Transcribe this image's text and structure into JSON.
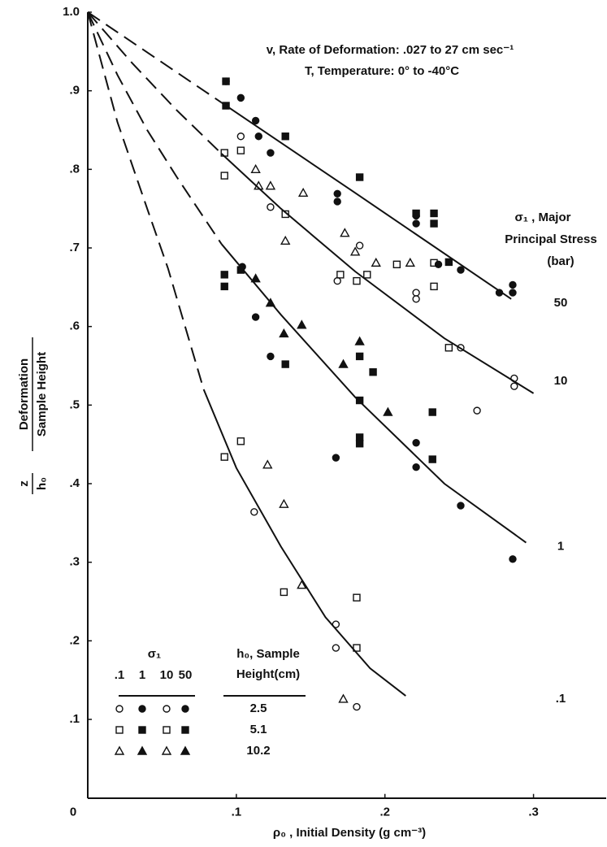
{
  "chart_data": {
    "type": "scatter",
    "xlim": [
      0,
      0.35
    ],
    "ylim": [
      0,
      1.0
    ],
    "xticks": [
      0,
      {
        "value": 0.1,
        "label": ".1"
      },
      {
        "value": 0.2,
        "label": ".2"
      },
      {
        "value": 0.3,
        "label": ".3"
      }
    ],
    "yticks": [
      {
        "value": 0.1,
        "label": ".1"
      },
      {
        "value": 0.2,
        "label": ".2"
      },
      {
        "value": 0.3,
        "label": ".3"
      },
      {
        "value": 0.4,
        "label": ".4"
      },
      {
        "value": 0.5,
        "label": ".5"
      },
      {
        "value": 0.6,
        "label": ".6"
      },
      {
        "value": 0.7,
        "label": ".7"
      },
      {
        "value": 0.8,
        "label": ".8"
      },
      {
        "value": 0.9,
        "label": ".9"
      },
      {
        "value": 1.0,
        "label": "1.0"
      }
    ],
    "x_label": "ρ₀ , Initial Density (g cm⁻³)",
    "y_label": {
      "symbol_top": "z",
      "symbol_bottom": "h₀",
      "text_top": "Deformation",
      "text_bottom": "Sample Height"
    },
    "annotations": [
      "v, Rate of Deformation: .027 to 27 cm sec⁻¹",
      "T, Temperature:   0° to -40°C"
    ],
    "curve_title": [
      "σ₁ , Major",
      "Principal Stress",
      "(bar)"
    ],
    "curves": [
      {
        "label": "50",
        "dashed": {
          "x": [
            0,
            0.09
          ],
          "values": [
            1.0,
            0.885
          ]
        },
        "solid": {
          "x": [
            0.09,
            0.18,
            0.285
          ],
          "values": [
            0.885,
            0.77,
            0.635
          ]
        }
      },
      {
        "label": "10",
        "dashed": {
          "x": [
            0,
            0.03,
            0.06,
            0.09
          ],
          "values": [
            1.0,
            0.935,
            0.875,
            0.82
          ]
        },
        "solid": {
          "x": [
            0.09,
            0.13,
            0.18,
            0.24,
            0.3
          ],
          "values": [
            0.82,
            0.75,
            0.67,
            0.585,
            0.515
          ]
        }
      },
      {
        "label": "1",
        "dashed": {
          "x": [
            0,
            0.02,
            0.04,
            0.06,
            0.09
          ],
          "values": [
            1.0,
            0.92,
            0.85,
            0.79,
            0.705
          ]
        },
        "solid": {
          "x": [
            0.09,
            0.13,
            0.18,
            0.24,
            0.295
          ],
          "values": [
            0.705,
            0.615,
            0.51,
            0.4,
            0.325
          ]
        }
      },
      {
        "label": ".1",
        "dashed": {
          "x": [
            0,
            0.02,
            0.04,
            0.054,
            0.078
          ],
          "values": [
            1.0,
            0.86,
            0.75,
            0.674,
            0.52
          ]
        },
        "solid": {
          "x": [
            0.078,
            0.1,
            0.13,
            0.16,
            0.19,
            0.214
          ],
          "values": [
            0.52,
            0.42,
            0.32,
            0.23,
            0.165,
            0.13
          ]
        }
      }
    ],
    "legend": {
      "stress_title": "σ₁",
      "stress_labels": [
        ".1",
        "1",
        "10",
        "50"
      ],
      "stress_filled": [
        false,
        true,
        false,
        true
      ],
      "height_title": [
        "h₀, Sample",
        "Height(cm)"
      ],
      "heights": [
        "2.5",
        "5.1",
        "10.2"
      ],
      "height_markers": [
        "circle",
        "square",
        "triangle"
      ]
    },
    "series": [
      {
        "marker": "circle",
        "filled": true,
        "x": [
          0.093,
          0.103,
          0.113,
          0.115,
          0.123,
          0.168,
          0.168,
          0.221,
          0.221,
          0.236,
          0.251,
          0.277,
          0.286,
          0.286,
          0.104,
          0.113,
          0.123,
          0.167,
          0.221,
          0.221,
          0.251,
          0.286
        ],
        "values": [
          0.912,
          0.891,
          0.862,
          0.842,
          0.821,
          0.769,
          0.759,
          0.741,
          0.731,
          0.679,
          0.672,
          0.643,
          0.653,
          0.643,
          0.676,
          0.612,
          0.562,
          0.433,
          0.452,
          0.421,
          0.372,
          0.304
        ]
      },
      {
        "marker": "circle",
        "filled": false,
        "x": [
          0.112,
          0.167,
          0.167,
          0.181,
          0.103,
          0.123,
          0.168,
          0.183,
          0.221,
          0.221,
          0.251,
          0.262,
          0.287,
          0.287
        ],
        "values": [
          0.364,
          0.221,
          0.191,
          0.116,
          0.842,
          0.752,
          0.658,
          0.703,
          0.635,
          0.643,
          0.573,
          0.493,
          0.534,
          0.524
        ]
      },
      {
        "marker": "square",
        "filled": true,
        "x": [
          0.093,
          0.093,
          0.133,
          0.183,
          0.221,
          0.233,
          0.233,
          0.243,
          0.092,
          0.092,
          0.103,
          0.133,
          0.183,
          0.183,
          0.183,
          0.183,
          0.192,
          0.232,
          0.232
        ],
        "values": [
          0.912,
          0.881,
          0.842,
          0.79,
          0.744,
          0.744,
          0.731,
          0.682,
          0.666,
          0.651,
          0.672,
          0.552,
          0.562,
          0.506,
          0.459,
          0.451,
          0.542,
          0.491,
          0.431
        ]
      },
      {
        "marker": "square",
        "filled": false,
        "x": [
          0.092,
          0.103,
          0.092,
          0.133,
          0.17,
          0.188,
          0.181,
          0.208,
          0.233,
          0.233,
          0.243,
          0.092,
          0.103,
          0.132,
          0.181,
          0.181
        ],
        "values": [
          0.821,
          0.824,
          0.792,
          0.743,
          0.666,
          0.666,
          0.658,
          0.679,
          0.681,
          0.651,
          0.573,
          0.434,
          0.454,
          0.262,
          0.255,
          0.191
        ]
      },
      {
        "marker": "triangle",
        "filled": false,
        "x": [
          0.113,
          0.115,
          0.123,
          0.145,
          0.133,
          0.173,
          0.18,
          0.217,
          0.194,
          0.121,
          0.132,
          0.144,
          0.172
        ],
        "values": [
          0.8,
          0.779,
          0.779,
          0.77,
          0.709,
          0.719,
          0.695,
          0.681,
          0.681,
          0.424,
          0.374,
          0.271,
          0.126
        ]
      },
      {
        "marker": "triangle",
        "filled": true,
        "x": [
          0.113,
          0.123,
          0.132,
          0.144,
          0.172,
          0.183,
          0.202
        ],
        "values": [
          0.661,
          0.63,
          0.591,
          0.602,
          0.552,
          0.581,
          0.491
        ]
      }
    ]
  }
}
